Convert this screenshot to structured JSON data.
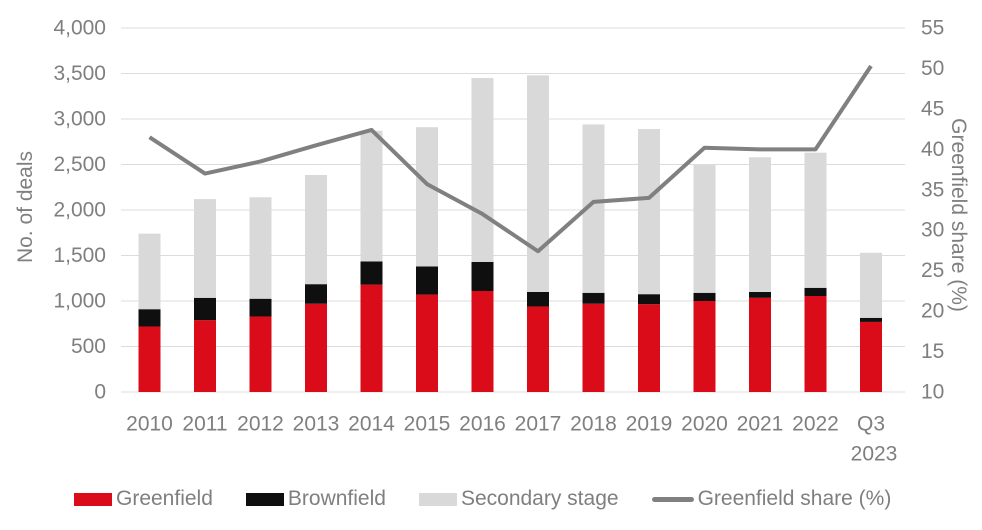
{
  "colors": {
    "greenfield": "#da0c19",
    "brownfield": "#0f0f0f",
    "secondary": "#d9d9d9",
    "line": "#808080",
    "grid": "#dcdcdc",
    "text": "#7f7f7f",
    "background": "#ffffff"
  },
  "chart_data": {
    "type": "bar",
    "stacked": true,
    "grid": "horizontal",
    "legend_position": "bottom",
    "categories": [
      "2010",
      "2011",
      "2012",
      "2013",
      "2014",
      "2015",
      "2016",
      "2017",
      "2018",
      "2019",
      "2020",
      "2021",
      "2022",
      "Q3 2023"
    ],
    "series": [
      {
        "name": "Greenfield",
        "type": "bar",
        "axis": "left",
        "color": "greenfield",
        "values": [
          720,
          790,
          830,
          970,
          1180,
          1070,
          1110,
          940,
          970,
          965,
          1000,
          1035,
          1055,
          770
        ]
      },
      {
        "name": "Brownfield",
        "type": "bar",
        "axis": "left",
        "color": "brownfield",
        "values": [
          190,
          245,
          195,
          215,
          255,
          310,
          320,
          160,
          120,
          110,
          90,
          65,
          90,
          45
        ]
      },
      {
        "name": "Secondary stage",
        "type": "bar",
        "axis": "left",
        "color": "secondary",
        "values": [
          830,
          1085,
          1115,
          1200,
          1435,
          1530,
          2020,
          2380,
          1850,
          1815,
          1405,
          1480,
          1485,
          715
        ]
      },
      {
        "name": "Greenfield share (%)",
        "type": "line",
        "axis": "right",
        "color": "line",
        "values": [
          41.5,
          37,
          38.5,
          40.5,
          42.4,
          35.7,
          32,
          27.4,
          33.5,
          34,
          40.2,
          40,
          40,
          50.3
        ]
      }
    ],
    "left_axis": {
      "label": "No. of deals",
      "min": 0,
      "max": 4000,
      "step": 500,
      "ticks": [
        "0",
        "500",
        "1,000",
        "1,500",
        "2,000",
        "2,500",
        "3,000",
        "3,500",
        "4,000"
      ]
    },
    "right_axis": {
      "label": "Greenfield share (%)",
      "min": 10,
      "max": 55,
      "step": 5,
      "ticks": [
        "10",
        "15",
        "20",
        "25",
        "30",
        "35",
        "40",
        "45",
        "50",
        "55"
      ]
    }
  }
}
